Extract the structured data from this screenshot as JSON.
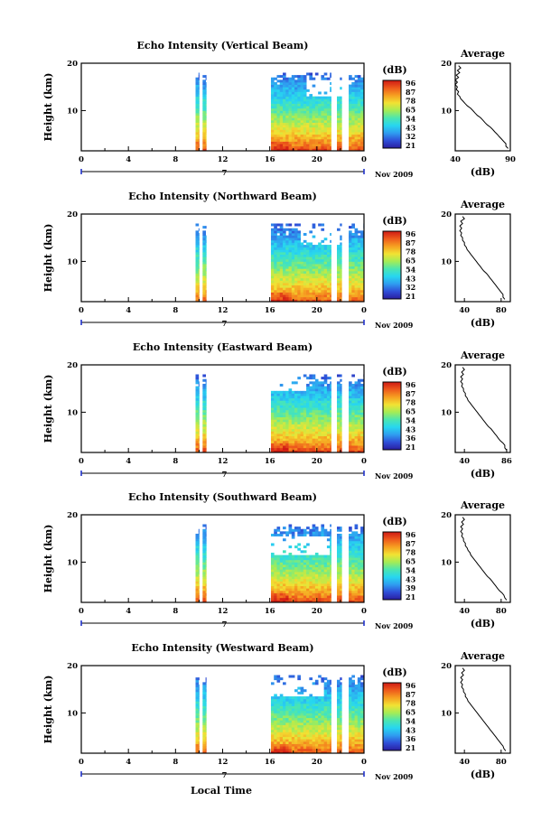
{
  "figure": {
    "xlabel": "Local Time",
    "date_label": "Nov 2009",
    "day_marker": "7",
    "colorbar_unit": "(dB)",
    "colorbar_ticks": [
      [
        "96",
        "87",
        "78",
        "65",
        "54",
        "43",
        "32",
        "21"
      ],
      [
        "96",
        "87",
        "78",
        "65",
        "54",
        "43",
        "32",
        "21"
      ],
      [
        "96",
        "87",
        "78",
        "65",
        "54",
        "43",
        "36",
        "21"
      ],
      [
        "96",
        "87",
        "78",
        "65",
        "54",
        "43",
        "39",
        "21"
      ],
      [
        "96",
        "87",
        "78",
        "65",
        "54",
        "43",
        "36",
        "21"
      ]
    ],
    "colormap": [
      "#2a1ea0",
      "#2f4fd8",
      "#2f9df0",
      "#27d6f0",
      "#4ce6b0",
      "#a5ec55",
      "#f2e233",
      "#f6a021",
      "#ee5a1c",
      "#cf1a14"
    ],
    "profile_title": "Average",
    "profile_xlabel": "(dB)"
  },
  "chart_data": [
    {
      "type": "heatmap",
      "title": "Echo Intensity (Vertical Beam)",
      "ylabel": "Height (km)",
      "x_ticks": [
        "0",
        "4",
        "8",
        "12",
        "16",
        "20",
        "0"
      ],
      "y_ticks": [
        "20",
        "10"
      ],
      "xlim": [
        0,
        24
      ],
      "ylim": [
        1.5,
        20
      ],
      "z_range": [
        21,
        96
      ],
      "data_segments_hours": [
        [
          9.7,
          10.0
        ],
        [
          10.3,
          10.6
        ],
        [
          16.1,
          21.2
        ],
        [
          21.7,
          22.1
        ],
        [
          22.7,
          24.0
        ]
      ],
      "surface_echo_db": 90,
      "echo_top_km": 18,
      "gap_regions": [
        {
          "x": [
            19.0,
            22.5
          ],
          "y": [
            13.0,
            16.5
          ]
        }
      ],
      "profile": {
        "xlim": [
          40,
          90
        ],
        "x_ticks": [
          "40",
          "90"
        ],
        "y_ticks": [
          "20",
          "10"
        ],
        "heights": [
          2,
          3,
          4,
          5,
          6,
          7,
          8,
          9,
          10,
          11,
          12,
          13,
          14,
          15,
          16,
          17,
          18,
          19
        ],
        "values": [
          88,
          86,
          82,
          78,
          74,
          69,
          65,
          60,
          56,
          51,
          47,
          44,
          43,
          42,
          42,
          43,
          44,
          45
        ]
      }
    },
    {
      "type": "heatmap",
      "title": "Echo Intensity (Northward Beam)",
      "ylabel": "Height (km)",
      "x_ticks": [
        "0",
        "4",
        "8",
        "12",
        "16",
        "20",
        "0"
      ],
      "y_ticks": [
        "20",
        "10"
      ],
      "xlim": [
        0,
        24
      ],
      "ylim": [
        1.5,
        20
      ],
      "z_range": [
        21,
        96
      ],
      "data_segments_hours": [
        [
          9.7,
          10.0
        ],
        [
          10.3,
          10.6
        ],
        [
          16.1,
          21.2
        ],
        [
          21.7,
          22.1
        ],
        [
          22.7,
          24.0
        ]
      ],
      "surface_echo_db": 88,
      "echo_top_km": 18,
      "gap_regions": [
        {
          "x": [
            18.5,
            22.0
          ],
          "y": [
            13.5,
            17.5
          ]
        }
      ],
      "profile": {
        "xlim": [
          30,
          90
        ],
        "x_ticks": [
          "40",
          "80"
        ],
        "y_ticks": [
          "20",
          "10"
        ],
        "heights": [
          2,
          3,
          4,
          5,
          6,
          7,
          8,
          9,
          10,
          11,
          12,
          13,
          14,
          15,
          16,
          17,
          18,
          19
        ],
        "values": [
          84,
          82,
          78,
          74,
          70,
          66,
          61,
          57,
          53,
          49,
          45,
          42,
          40,
          38,
          37,
          37,
          38,
          40
        ]
      }
    },
    {
      "type": "heatmap",
      "title": "Echo Intensity (Eastward Beam)",
      "ylabel": "Height (km)",
      "x_ticks": [
        "0",
        "4",
        "8",
        "12",
        "16",
        "20",
        "0"
      ],
      "y_ticks": [
        "20",
        "10"
      ],
      "xlim": [
        0,
        24
      ],
      "ylim": [
        1.5,
        20
      ],
      "z_range": [
        21,
        96
      ],
      "data_segments_hours": [
        [
          9.7,
          10.0
        ],
        [
          10.3,
          10.6
        ],
        [
          16.1,
          21.2
        ],
        [
          21.7,
          22.1
        ],
        [
          22.7,
          24.0
        ]
      ],
      "surface_echo_db": 90,
      "echo_top_km": 18,
      "gap_regions": [
        {
          "x": [
            16.1,
            19.0
          ],
          "y": [
            14.5,
            18.0
          ]
        }
      ],
      "profile": {
        "xlim": [
          30,
          90
        ],
        "x_ticks": [
          "40",
          "86"
        ],
        "y_ticks": [
          "20",
          "10"
        ],
        "heights": [
          2,
          3,
          4,
          5,
          6,
          7,
          8,
          9,
          10,
          11,
          12,
          13,
          14,
          15,
          16,
          17,
          18,
          19
        ],
        "values": [
          86,
          84,
          79,
          75,
          71,
          66,
          62,
          58,
          54,
          50,
          46,
          43,
          41,
          39,
          38,
          38,
          39,
          40
        ]
      }
    },
    {
      "type": "heatmap",
      "title": "Echo Intensity (Southward Beam)",
      "ylabel": "Height (km)",
      "x_ticks": [
        "0",
        "4",
        "8",
        "12",
        "16",
        "20",
        "0"
      ],
      "y_ticks": [
        "20",
        "10"
      ],
      "xlim": [
        0,
        24
      ],
      "ylim": [
        1.5,
        20
      ],
      "z_range": [
        21,
        96
      ],
      "data_segments_hours": [
        [
          9.7,
          10.0
        ],
        [
          10.3,
          10.6
        ],
        [
          16.1,
          21.2
        ],
        [
          21.7,
          22.1
        ],
        [
          22.7,
          24.0
        ]
      ],
      "surface_echo_db": 90,
      "echo_top_km": 18,
      "gap_regions": [
        {
          "x": [
            16.1,
            21.0
          ],
          "y": [
            11.5,
            15.5
          ]
        }
      ],
      "profile": {
        "xlim": [
          30,
          90
        ],
        "x_ticks": [
          "40",
          "80"
        ],
        "y_ticks": [
          "20",
          "10"
        ],
        "heights": [
          2,
          3,
          4,
          5,
          6,
          7,
          8,
          9,
          10,
          11,
          12,
          13,
          14,
          15,
          16,
          17,
          18,
          19
        ],
        "values": [
          86,
          83,
          78,
          74,
          70,
          65,
          61,
          57,
          53,
          49,
          46,
          43,
          41,
          39,
          38,
          38,
          39,
          40
        ]
      }
    },
    {
      "type": "heatmap",
      "title": "Echo Intensity (Westward Beam)",
      "ylabel": "Height (km)",
      "x_ticks": [
        "0",
        "4",
        "8",
        "12",
        "16",
        "20",
        "0"
      ],
      "y_ticks": [
        "20",
        "10"
      ],
      "xlim": [
        0,
        24
      ],
      "ylim": [
        1.5,
        20
      ],
      "z_range": [
        21,
        96
      ],
      "data_segments_hours": [
        [
          9.7,
          10.0
        ],
        [
          10.3,
          10.6
        ],
        [
          16.1,
          21.2
        ],
        [
          21.7,
          22.1
        ],
        [
          22.7,
          24.0
        ]
      ],
      "surface_echo_db": 88,
      "echo_top_km": 18,
      "gap_regions": [
        {
          "x": [
            16.1,
            20.5
          ],
          "y": [
            13.5,
            17.0
          ]
        }
      ],
      "profile": {
        "xlim": [
          30,
          90
        ],
        "x_ticks": [
          "40",
          "80"
        ],
        "y_ticks": [
          "20",
          "10"
        ],
        "heights": [
          2,
          3,
          4,
          5,
          6,
          7,
          8,
          9,
          10,
          11,
          12,
          13,
          14,
          15,
          16,
          17,
          18,
          19
        ],
        "values": [
          85,
          82,
          78,
          74,
          70,
          66,
          62,
          58,
          54,
          50,
          46,
          43,
          41,
          39,
          38,
          38,
          39,
          40
        ]
      }
    }
  ]
}
